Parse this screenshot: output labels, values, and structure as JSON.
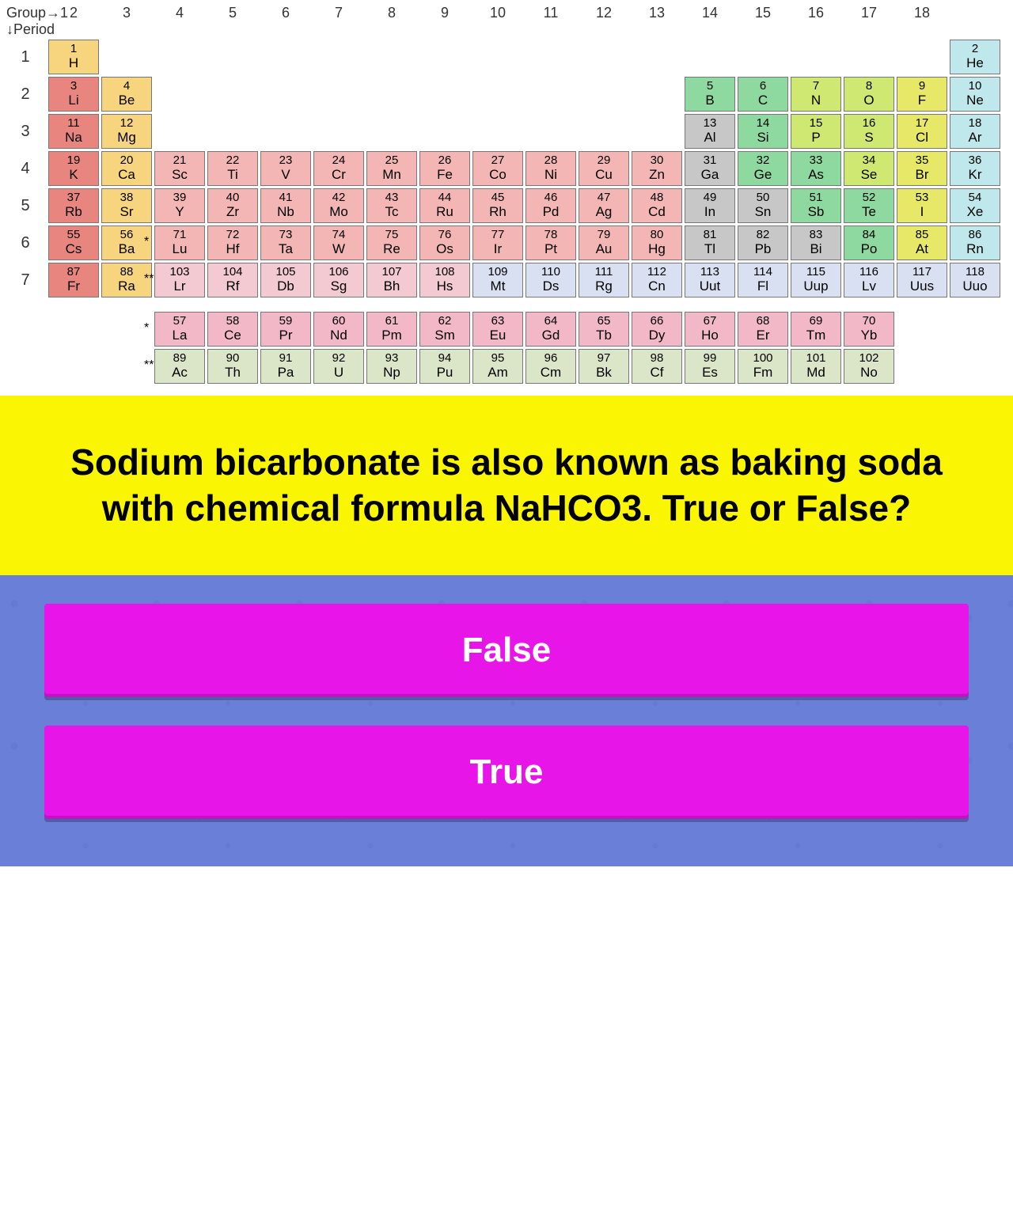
{
  "labels": {
    "group": "Group→",
    "period": "↓Period"
  },
  "groups": [
    1,
    2,
    3,
    4,
    5,
    6,
    7,
    8,
    9,
    10,
    11,
    12,
    13,
    14,
    15,
    16,
    17,
    18
  ],
  "colors": {
    "cat1": "#e8857e",
    "cat2": "#f28c65",
    "cat3": "#f7d57e",
    "cat4": "#f3b6b4",
    "cat5": "#f3c9d2",
    "cat6": "#c7c7c7",
    "cat7": "#8dd9a0",
    "cat8": "#cfe871",
    "cat9": "#e8e868",
    "cat10": "#bfe8ec",
    "cat11": "#d8e0f2",
    "cat12": "#f3b8c8",
    "cat13": "#dbe5c8",
    "border": "#777777"
  },
  "periods": [
    {
      "n": 1,
      "cells": [
        {
          "g": 1,
          "num": 1,
          "sym": "H",
          "c": "cat3"
        },
        {
          "g": 18,
          "num": 2,
          "sym": "He",
          "c": "cat10"
        }
      ]
    },
    {
      "n": 2,
      "cells": [
        {
          "g": 1,
          "num": 3,
          "sym": "Li",
          "c": "cat1"
        },
        {
          "g": 2,
          "num": 4,
          "sym": "Be",
          "c": "cat3"
        },
        {
          "g": 13,
          "num": 5,
          "sym": "B",
          "c": "cat7"
        },
        {
          "g": 14,
          "num": 6,
          "sym": "C",
          "c": "cat7"
        },
        {
          "g": 15,
          "num": 7,
          "sym": "N",
          "c": "cat8"
        },
        {
          "g": 16,
          "num": 8,
          "sym": "O",
          "c": "cat8"
        },
        {
          "g": 17,
          "num": 9,
          "sym": "F",
          "c": "cat9"
        },
        {
          "g": 18,
          "num": 10,
          "sym": "Ne",
          "c": "cat10"
        }
      ]
    },
    {
      "n": 3,
      "cells": [
        {
          "g": 1,
          "num": 11,
          "sym": "Na",
          "c": "cat1"
        },
        {
          "g": 2,
          "num": 12,
          "sym": "Mg",
          "c": "cat3"
        },
        {
          "g": 13,
          "num": 13,
          "sym": "Al",
          "c": "cat6"
        },
        {
          "g": 14,
          "num": 14,
          "sym": "Si",
          "c": "cat7"
        },
        {
          "g": 15,
          "num": 15,
          "sym": "P",
          "c": "cat8"
        },
        {
          "g": 16,
          "num": 16,
          "sym": "S",
          "c": "cat8"
        },
        {
          "g": 17,
          "num": 17,
          "sym": "Cl",
          "c": "cat9"
        },
        {
          "g": 18,
          "num": 18,
          "sym": "Ar",
          "c": "cat10"
        }
      ]
    },
    {
      "n": 4,
      "cells": [
        {
          "g": 1,
          "num": 19,
          "sym": "K",
          "c": "cat1"
        },
        {
          "g": 2,
          "num": 20,
          "sym": "Ca",
          "c": "cat3"
        },
        {
          "g": 3,
          "num": 21,
          "sym": "Sc",
          "c": "cat4"
        },
        {
          "g": 4,
          "num": 22,
          "sym": "Ti",
          "c": "cat4"
        },
        {
          "g": 5,
          "num": 23,
          "sym": "V",
          "c": "cat4"
        },
        {
          "g": 6,
          "num": 24,
          "sym": "Cr",
          "c": "cat4"
        },
        {
          "g": 7,
          "num": 25,
          "sym": "Mn",
          "c": "cat4"
        },
        {
          "g": 8,
          "num": 26,
          "sym": "Fe",
          "c": "cat4"
        },
        {
          "g": 9,
          "num": 27,
          "sym": "Co",
          "c": "cat4"
        },
        {
          "g": 10,
          "num": 28,
          "sym": "Ni",
          "c": "cat4"
        },
        {
          "g": 11,
          "num": 29,
          "sym": "Cu",
          "c": "cat4"
        },
        {
          "g": 12,
          "num": 30,
          "sym": "Zn",
          "c": "cat4"
        },
        {
          "g": 13,
          "num": 31,
          "sym": "Ga",
          "c": "cat6"
        },
        {
          "g": 14,
          "num": 32,
          "sym": "Ge",
          "c": "cat7"
        },
        {
          "g": 15,
          "num": 33,
          "sym": "As",
          "c": "cat7"
        },
        {
          "g": 16,
          "num": 34,
          "sym": "Se",
          "c": "cat8"
        },
        {
          "g": 17,
          "num": 35,
          "sym": "Br",
          "c": "cat9"
        },
        {
          "g": 18,
          "num": 36,
          "sym": "Kr",
          "c": "cat10"
        }
      ]
    },
    {
      "n": 5,
      "cells": [
        {
          "g": 1,
          "num": 37,
          "sym": "Rb",
          "c": "cat1"
        },
        {
          "g": 2,
          "num": 38,
          "sym": "Sr",
          "c": "cat3"
        },
        {
          "g": 3,
          "num": 39,
          "sym": "Y",
          "c": "cat4"
        },
        {
          "g": 4,
          "num": 40,
          "sym": "Zr",
          "c": "cat4"
        },
        {
          "g": 5,
          "num": 41,
          "sym": "Nb",
          "c": "cat4"
        },
        {
          "g": 6,
          "num": 42,
          "sym": "Mo",
          "c": "cat4"
        },
        {
          "g": 7,
          "num": 43,
          "sym": "Tc",
          "c": "cat4"
        },
        {
          "g": 8,
          "num": 44,
          "sym": "Ru",
          "c": "cat4"
        },
        {
          "g": 9,
          "num": 45,
          "sym": "Rh",
          "c": "cat4"
        },
        {
          "g": 10,
          "num": 46,
          "sym": "Pd",
          "c": "cat4"
        },
        {
          "g": 11,
          "num": 47,
          "sym": "Ag",
          "c": "cat4"
        },
        {
          "g": 12,
          "num": 48,
          "sym": "Cd",
          "c": "cat4"
        },
        {
          "g": 13,
          "num": 49,
          "sym": "In",
          "c": "cat6"
        },
        {
          "g": 14,
          "num": 50,
          "sym": "Sn",
          "c": "cat6"
        },
        {
          "g": 15,
          "num": 51,
          "sym": "Sb",
          "c": "cat7"
        },
        {
          "g": 16,
          "num": 52,
          "sym": "Te",
          "c": "cat7"
        },
        {
          "g": 17,
          "num": 53,
          "sym": "I",
          "c": "cat9"
        },
        {
          "g": 18,
          "num": 54,
          "sym": "Xe",
          "c": "cat10"
        }
      ]
    },
    {
      "n": 6,
      "star": "*",
      "cells": [
        {
          "g": 1,
          "num": 55,
          "sym": "Cs",
          "c": "cat1"
        },
        {
          "g": 2,
          "num": 56,
          "sym": "Ba",
          "c": "cat3"
        },
        {
          "g": 3,
          "num": 71,
          "sym": "Lu",
          "c": "cat4"
        },
        {
          "g": 4,
          "num": 72,
          "sym": "Hf",
          "c": "cat4"
        },
        {
          "g": 5,
          "num": 73,
          "sym": "Ta",
          "c": "cat4"
        },
        {
          "g": 6,
          "num": 74,
          "sym": "W",
          "c": "cat4"
        },
        {
          "g": 7,
          "num": 75,
          "sym": "Re",
          "c": "cat4"
        },
        {
          "g": 8,
          "num": 76,
          "sym": "Os",
          "c": "cat4"
        },
        {
          "g": 9,
          "num": 77,
          "sym": "Ir",
          "c": "cat4"
        },
        {
          "g": 10,
          "num": 78,
          "sym": "Pt",
          "c": "cat4"
        },
        {
          "g": 11,
          "num": 79,
          "sym": "Au",
          "c": "cat4"
        },
        {
          "g": 12,
          "num": 80,
          "sym": "Hg",
          "c": "cat4"
        },
        {
          "g": 13,
          "num": 81,
          "sym": "Tl",
          "c": "cat6"
        },
        {
          "g": 14,
          "num": 82,
          "sym": "Pb",
          "c": "cat6"
        },
        {
          "g": 15,
          "num": 83,
          "sym": "Bi",
          "c": "cat6"
        },
        {
          "g": 16,
          "num": 84,
          "sym": "Po",
          "c": "cat7"
        },
        {
          "g": 17,
          "num": 85,
          "sym": "At",
          "c": "cat9"
        },
        {
          "g": 18,
          "num": 86,
          "sym": "Rn",
          "c": "cat10"
        }
      ]
    },
    {
      "n": 7,
      "star": "**",
      "cells": [
        {
          "g": 1,
          "num": 87,
          "sym": "Fr",
          "c": "cat1"
        },
        {
          "g": 2,
          "num": 88,
          "sym": "Ra",
          "c": "cat3"
        },
        {
          "g": 3,
          "num": 103,
          "sym": "Lr",
          "c": "cat5"
        },
        {
          "g": 4,
          "num": 104,
          "sym": "Rf",
          "c": "cat5"
        },
        {
          "g": 5,
          "num": 105,
          "sym": "Db",
          "c": "cat5"
        },
        {
          "g": 6,
          "num": 106,
          "sym": "Sg",
          "c": "cat5"
        },
        {
          "g": 7,
          "num": 107,
          "sym": "Bh",
          "c": "cat5"
        },
        {
          "g": 8,
          "num": 108,
          "sym": "Hs",
          "c": "cat5"
        },
        {
          "g": 9,
          "num": 109,
          "sym": "Mt",
          "c": "cat11"
        },
        {
          "g": 10,
          "num": 110,
          "sym": "Ds",
          "c": "cat11"
        },
        {
          "g": 11,
          "num": 111,
          "sym": "Rg",
          "c": "cat11"
        },
        {
          "g": 12,
          "num": 112,
          "sym": "Cn",
          "c": "cat11"
        },
        {
          "g": 13,
          "num": 113,
          "sym": "Uut",
          "c": "cat11"
        },
        {
          "g": 14,
          "num": 114,
          "sym": "Fl",
          "c": "cat11"
        },
        {
          "g": 15,
          "num": 115,
          "sym": "Uup",
          "c": "cat11"
        },
        {
          "g": 16,
          "num": 116,
          "sym": "Lv",
          "c": "cat11"
        },
        {
          "g": 17,
          "num": 117,
          "sym": "Uus",
          "c": "cat11"
        },
        {
          "g": 18,
          "num": 118,
          "sym": "Uuo",
          "c": "cat11"
        }
      ]
    }
  ],
  "fblock": [
    {
      "star": "*",
      "cells": [
        {
          "num": 57,
          "sym": "La",
          "c": "cat12"
        },
        {
          "num": 58,
          "sym": "Ce",
          "c": "cat12"
        },
        {
          "num": 59,
          "sym": "Pr",
          "c": "cat12"
        },
        {
          "num": 60,
          "sym": "Nd",
          "c": "cat12"
        },
        {
          "num": 61,
          "sym": "Pm",
          "c": "cat12"
        },
        {
          "num": 62,
          "sym": "Sm",
          "c": "cat12"
        },
        {
          "num": 63,
          "sym": "Eu",
          "c": "cat12"
        },
        {
          "num": 64,
          "sym": "Gd",
          "c": "cat12"
        },
        {
          "num": 65,
          "sym": "Tb",
          "c": "cat12"
        },
        {
          "num": 66,
          "sym": "Dy",
          "c": "cat12"
        },
        {
          "num": 67,
          "sym": "Ho",
          "c": "cat12"
        },
        {
          "num": 68,
          "sym": "Er",
          "c": "cat12"
        },
        {
          "num": 69,
          "sym": "Tm",
          "c": "cat12"
        },
        {
          "num": 70,
          "sym": "Yb",
          "c": "cat12"
        }
      ]
    },
    {
      "star": "**",
      "cells": [
        {
          "num": 89,
          "sym": "Ac",
          "c": "cat13"
        },
        {
          "num": 90,
          "sym": "Th",
          "c": "cat13"
        },
        {
          "num": 91,
          "sym": "Pa",
          "c": "cat13"
        },
        {
          "num": 92,
          "sym": "U",
          "c": "cat13"
        },
        {
          "num": 93,
          "sym": "Np",
          "c": "cat13"
        },
        {
          "num": 94,
          "sym": "Pu",
          "c": "cat13"
        },
        {
          "num": 95,
          "sym": "Am",
          "c": "cat13"
        },
        {
          "num": 96,
          "sym": "Cm",
          "c": "cat13"
        },
        {
          "num": 97,
          "sym": "Bk",
          "c": "cat13"
        },
        {
          "num": 98,
          "sym": "Cf",
          "c": "cat13"
        },
        {
          "num": 99,
          "sym": "Es",
          "c": "cat13"
        },
        {
          "num": 100,
          "sym": "Fm",
          "c": "cat13"
        },
        {
          "num": 101,
          "sym": "Md",
          "c": "cat13"
        },
        {
          "num": 102,
          "sym": "No",
          "c": "cat13"
        }
      ]
    }
  ],
  "question": "Sodium bicarbonate is also known as baking soda with chemical formula NaHCO3. True or False?",
  "answers": [
    "False",
    "True"
  ],
  "style": {
    "question_bg": "#faf502",
    "question_color": "#000000",
    "question_fontsize": 46,
    "answers_bg": "#6a80d8",
    "btn_bg": "#e815e8",
    "btn_color": "#ffffff",
    "btn_fontsize": 44
  }
}
